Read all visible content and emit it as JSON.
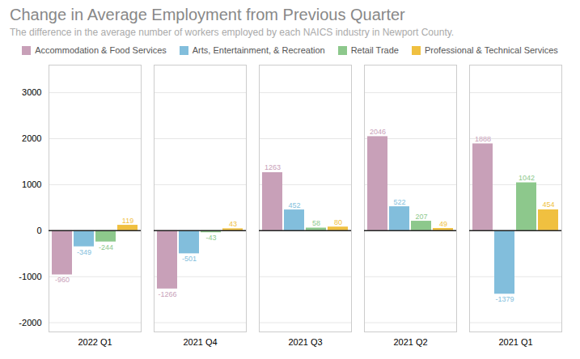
{
  "chart_data": {
    "type": "bar",
    "title": "Change in Average Employment from Previous Quarter",
    "subtitle": "The difference in the average number of workers employed by each NAICS industry in Newport County.",
    "categories": [
      "2022 Q1",
      "2021 Q4",
      "2021 Q3",
      "2021 Q2",
      "2021 Q1"
    ],
    "series": [
      {
        "name": "Accommodation & Food Services",
        "color": "#c8a0b8",
        "values": [
          -960,
          -1266,
          1263,
          2046,
          1888
        ]
      },
      {
        "name": "Arts, Entertainment, & Recreation",
        "color": "#82bedc",
        "values": [
          -349,
          -501,
          452,
          522,
          -1379
        ]
      },
      {
        "name": "Retail Trade",
        "color": "#8dc88c",
        "values": [
          -244,
          -43,
          58,
          207,
          1042
        ]
      },
      {
        "name": "Professional & Technical Services",
        "color": "#f0c040",
        "values": [
          119,
          43,
          80,
          49,
          454
        ]
      }
    ],
    "ylim": [
      -2200,
      3600
    ],
    "yticks": [
      -2000,
      -1000,
      0,
      1000,
      2000,
      3000
    ],
    "grid": true,
    "data_labels": true,
    "legend": "top"
  }
}
